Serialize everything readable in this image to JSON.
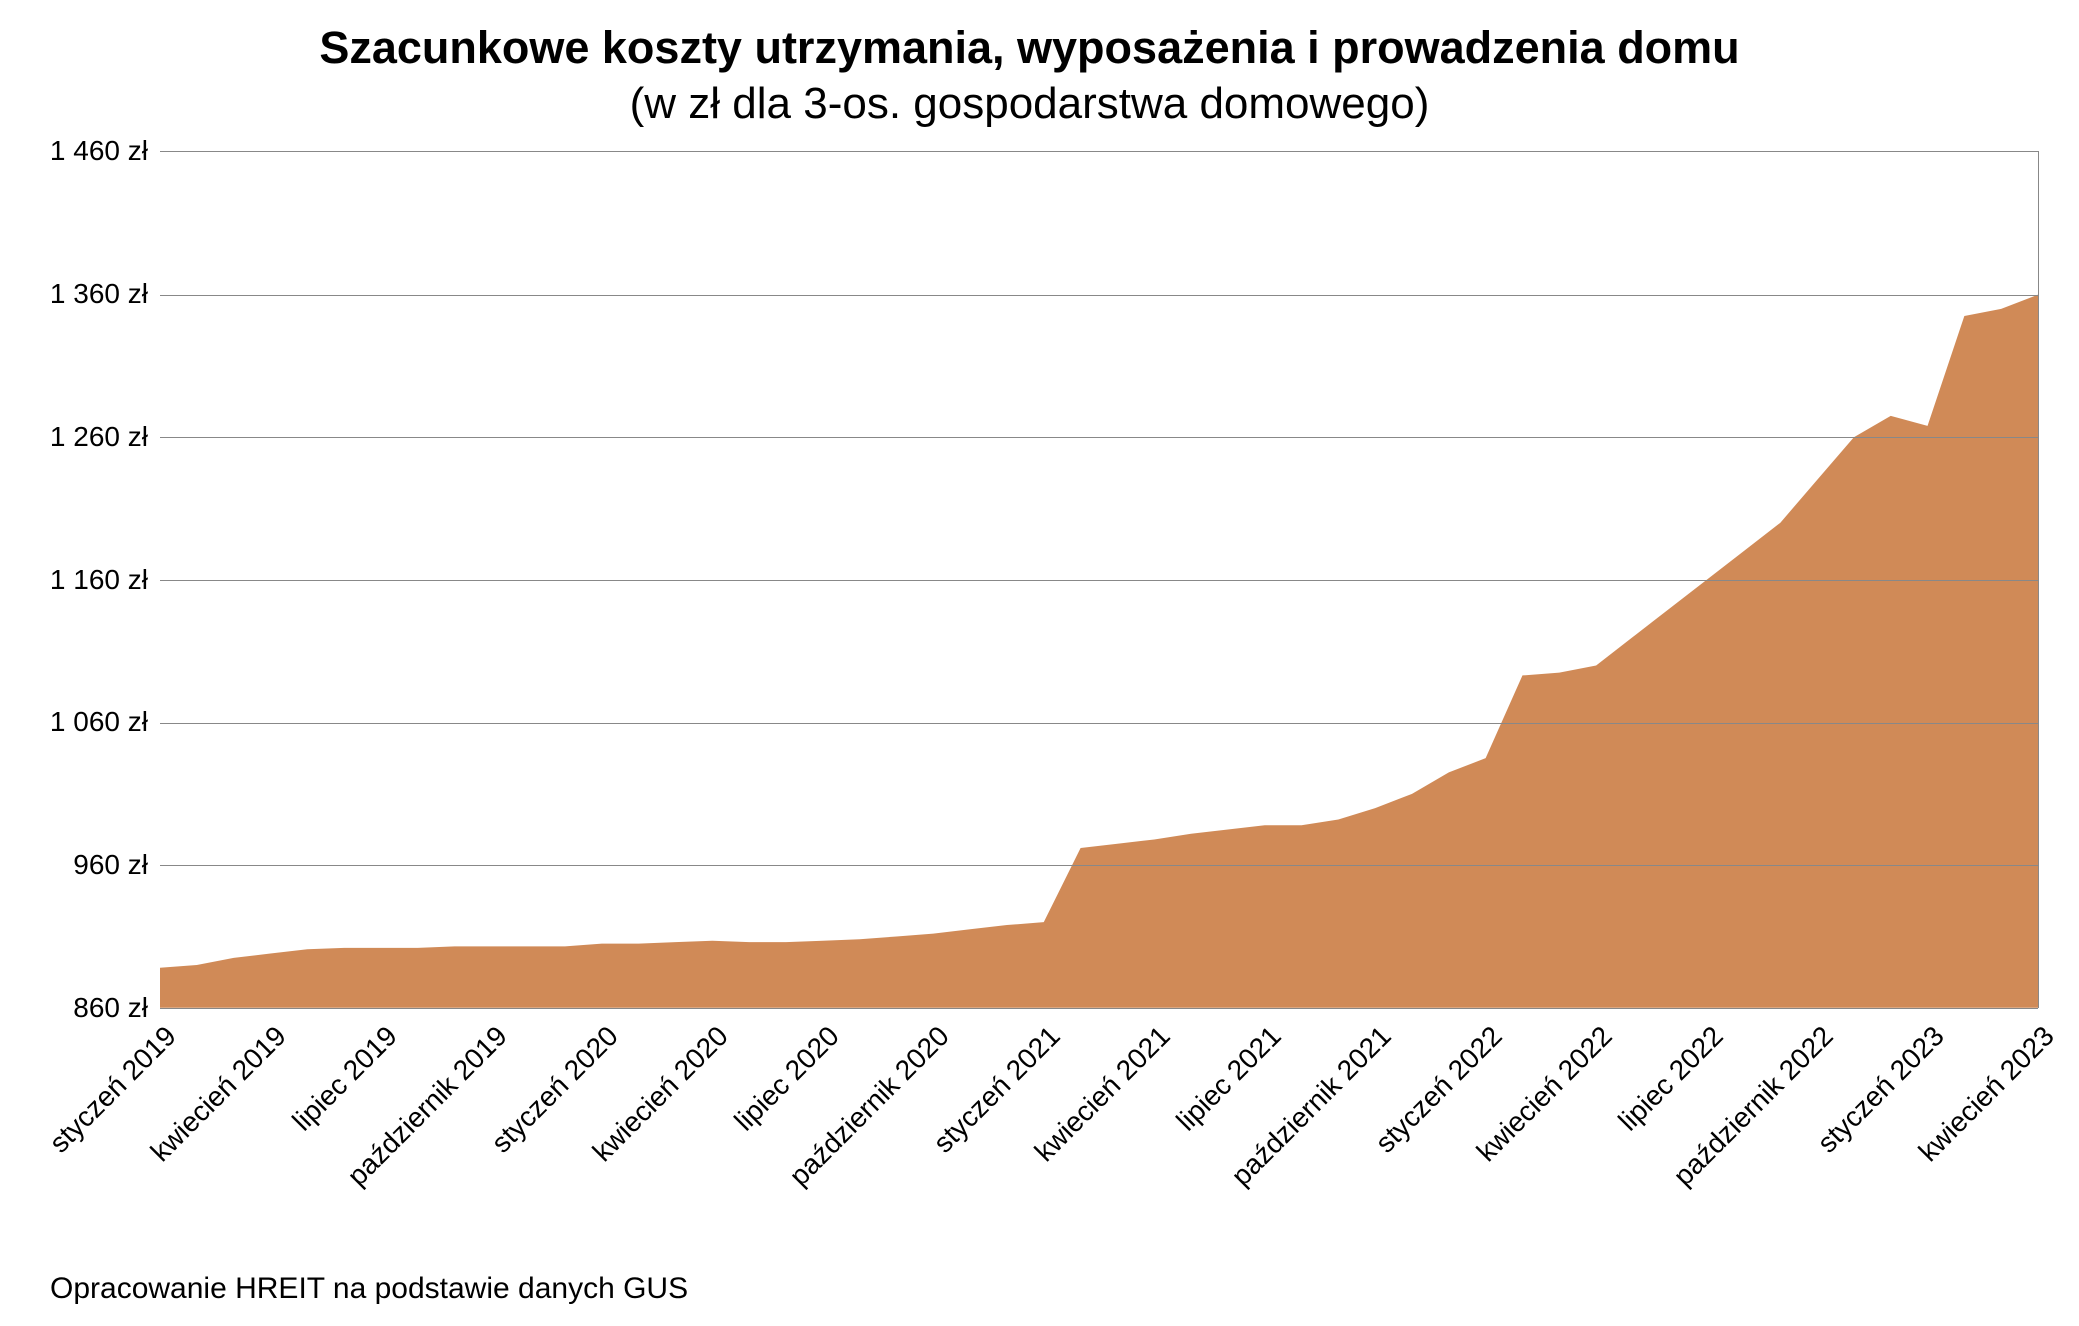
{
  "chart": {
    "type": "area",
    "title_main": "Szacunkowe koszty utrzymania, wyposażenia i prowadzenia domu",
    "title_sub": "(w zł dla 3-os. gospodarstwa domowego)",
    "title_main_fontsize": 45,
    "title_main_fontweight": 700,
    "title_sub_fontsize": 44,
    "title_sub_fontweight": 400,
    "background_color": "#ffffff",
    "fill_color": "#d08a57",
    "fill_opacity": 1.0,
    "grid_color": "#888888",
    "axis_line_color": "#888888",
    "text_color": "#000000",
    "tick_fontsize": 28,
    "footnote_fontsize": 30,
    "ylim": [
      860,
      1460
    ],
    "ytick_step": 100,
    "ytick_suffix": " zł",
    "yticks": [
      {
        "value": 860,
        "label": "860 zł"
      },
      {
        "value": 960,
        "label": "960 zł"
      },
      {
        "value": 1060,
        "label": "1 060 zł"
      },
      {
        "value": 1160,
        "label": "1 160 zł"
      },
      {
        "value": 1260,
        "label": "1 260 zł"
      },
      {
        "value": 1360,
        "label": "1 360 zł"
      },
      {
        "value": 1460,
        "label": "1 460 zł"
      }
    ],
    "xticks": [
      {
        "index": 0,
        "label": "styczeń 2019"
      },
      {
        "index": 3,
        "label": "kwiecień 2019"
      },
      {
        "index": 6,
        "label": "lipiec 2019"
      },
      {
        "index": 9,
        "label": "październik 2019"
      },
      {
        "index": 12,
        "label": "styczeń 2020"
      },
      {
        "index": 15,
        "label": "kwiecień 2020"
      },
      {
        "index": 18,
        "label": "lipiec 2020"
      },
      {
        "index": 21,
        "label": "październik 2020"
      },
      {
        "index": 24,
        "label": "styczeń 2021"
      },
      {
        "index": 27,
        "label": "kwiecień 2021"
      },
      {
        "index": 30,
        "label": "lipiec 2021"
      },
      {
        "index": 33,
        "label": "październik 2021"
      },
      {
        "index": 36,
        "label": "styczeń 2022"
      },
      {
        "index": 39,
        "label": "kwiecień 2022"
      },
      {
        "index": 42,
        "label": "lipiec 2022"
      },
      {
        "index": 45,
        "label": "październik 2022"
      },
      {
        "index": 48,
        "label": "styczeń 2023"
      },
      {
        "index": 51,
        "label": "kwiecień 2023"
      }
    ],
    "n_points": 52,
    "values": [
      888,
      890,
      895,
      898,
      901,
      902,
      902,
      902,
      903,
      903,
      903,
      903,
      905,
      905,
      906,
      907,
      906,
      906,
      907,
      908,
      910,
      912,
      915,
      918,
      920,
      972,
      975,
      978,
      982,
      985,
      988,
      988,
      992,
      1000,
      1010,
      1025,
      1035,
      1093,
      1095,
      1100,
      1120,
      1140,
      1160,
      1180,
      1200,
      1230,
      1260,
      1275,
      1268,
      1345,
      1350,
      1360
    ],
    "footnote": "Opracowanie HREIT na podstawie danych GUS"
  }
}
